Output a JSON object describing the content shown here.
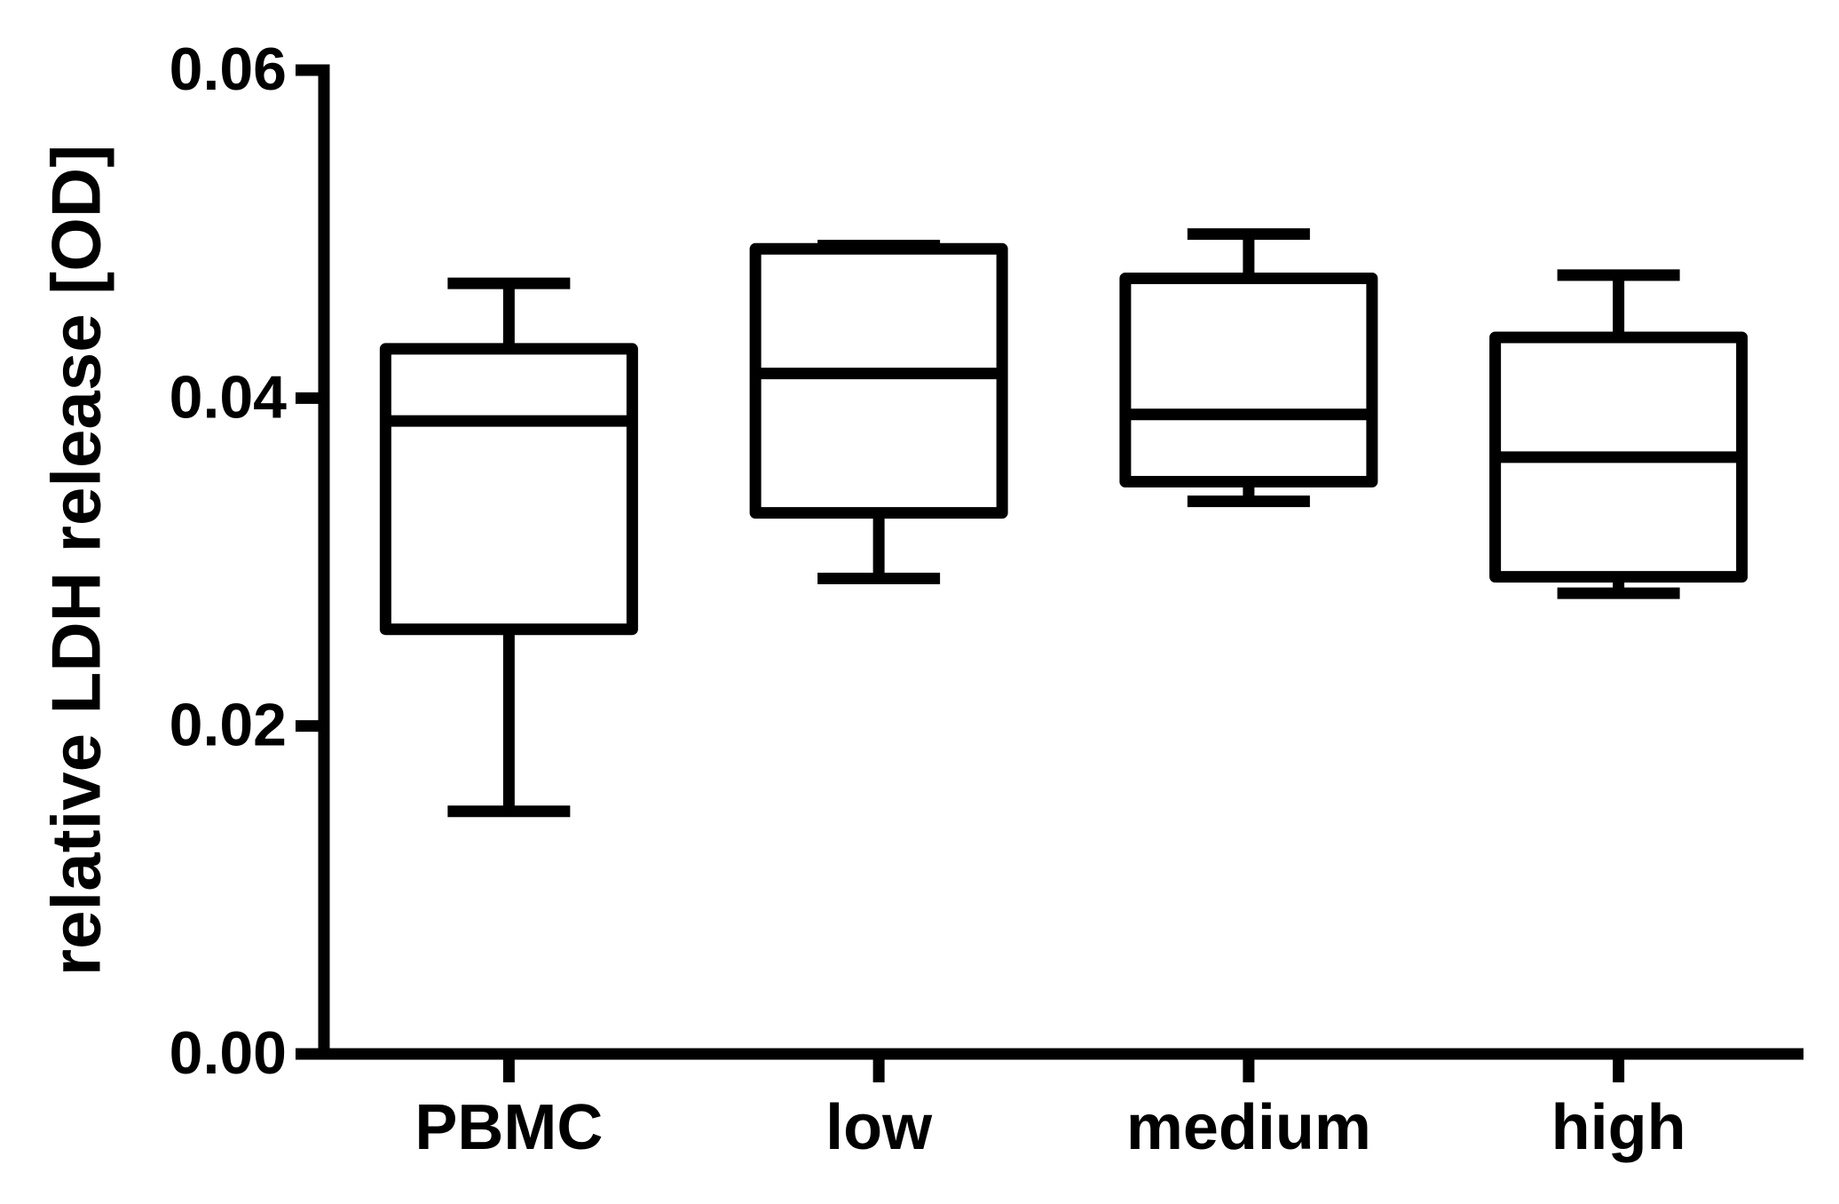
{
  "chart_data": {
    "type": "box",
    "y_label": "relative LDH release [OD]",
    "categories": [
      "PBMC",
      "low",
      "medium",
      "high"
    ],
    "series": [
      {
        "color": "#000000",
        "min": [
          0.0148,
          0.029,
          0.0337,
          0.0281
        ],
        "q1": [
          0.0259,
          0.033,
          0.0349,
          0.0291
        ],
        "median": [
          0.0386,
          0.0415,
          0.039,
          0.0364
        ],
        "q3": [
          0.043,
          0.0491,
          0.0473,
          0.0437
        ],
        "max": [
          0.047,
          0.0493,
          0.05,
          0.0475
        ]
      }
    ],
    "ylim": [
      0,
      0.06
    ],
    "yticks": [
      {
        "value": 0,
        "label": "0.00"
      },
      0.02,
      0.04,
      0.06
    ],
    "grid": false
  }
}
